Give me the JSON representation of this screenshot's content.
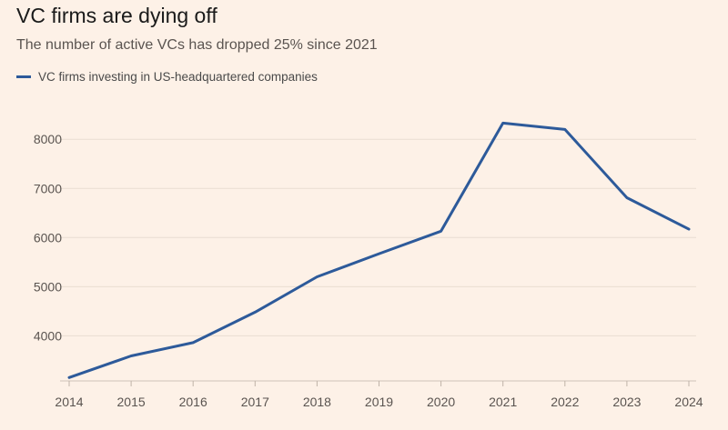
{
  "chart_data": {
    "type": "line",
    "title": "VC firms are dying off",
    "subtitle": "The number of active VCs has dropped 25% since 2021",
    "xlabel": "",
    "ylabel": "",
    "x": [
      "2014",
      "2015",
      "2016",
      "2017",
      "2018",
      "2019",
      "2020",
      "2021",
      "2022",
      "2023",
      "2024"
    ],
    "series": [
      {
        "name": "VC firms investing in US-headquartered companies",
        "color": "#2d5a9a",
        "values": [
          3150,
          3590,
          3860,
          4480,
          5200,
          5670,
          6130,
          8330,
          8200,
          6810,
          6170
        ]
      }
    ],
    "yticks": [
      4000,
      5000,
      6000,
      7000,
      8000
    ],
    "ylim": [
      3100,
      8800
    ],
    "grid": true,
    "legend": "top-left"
  }
}
